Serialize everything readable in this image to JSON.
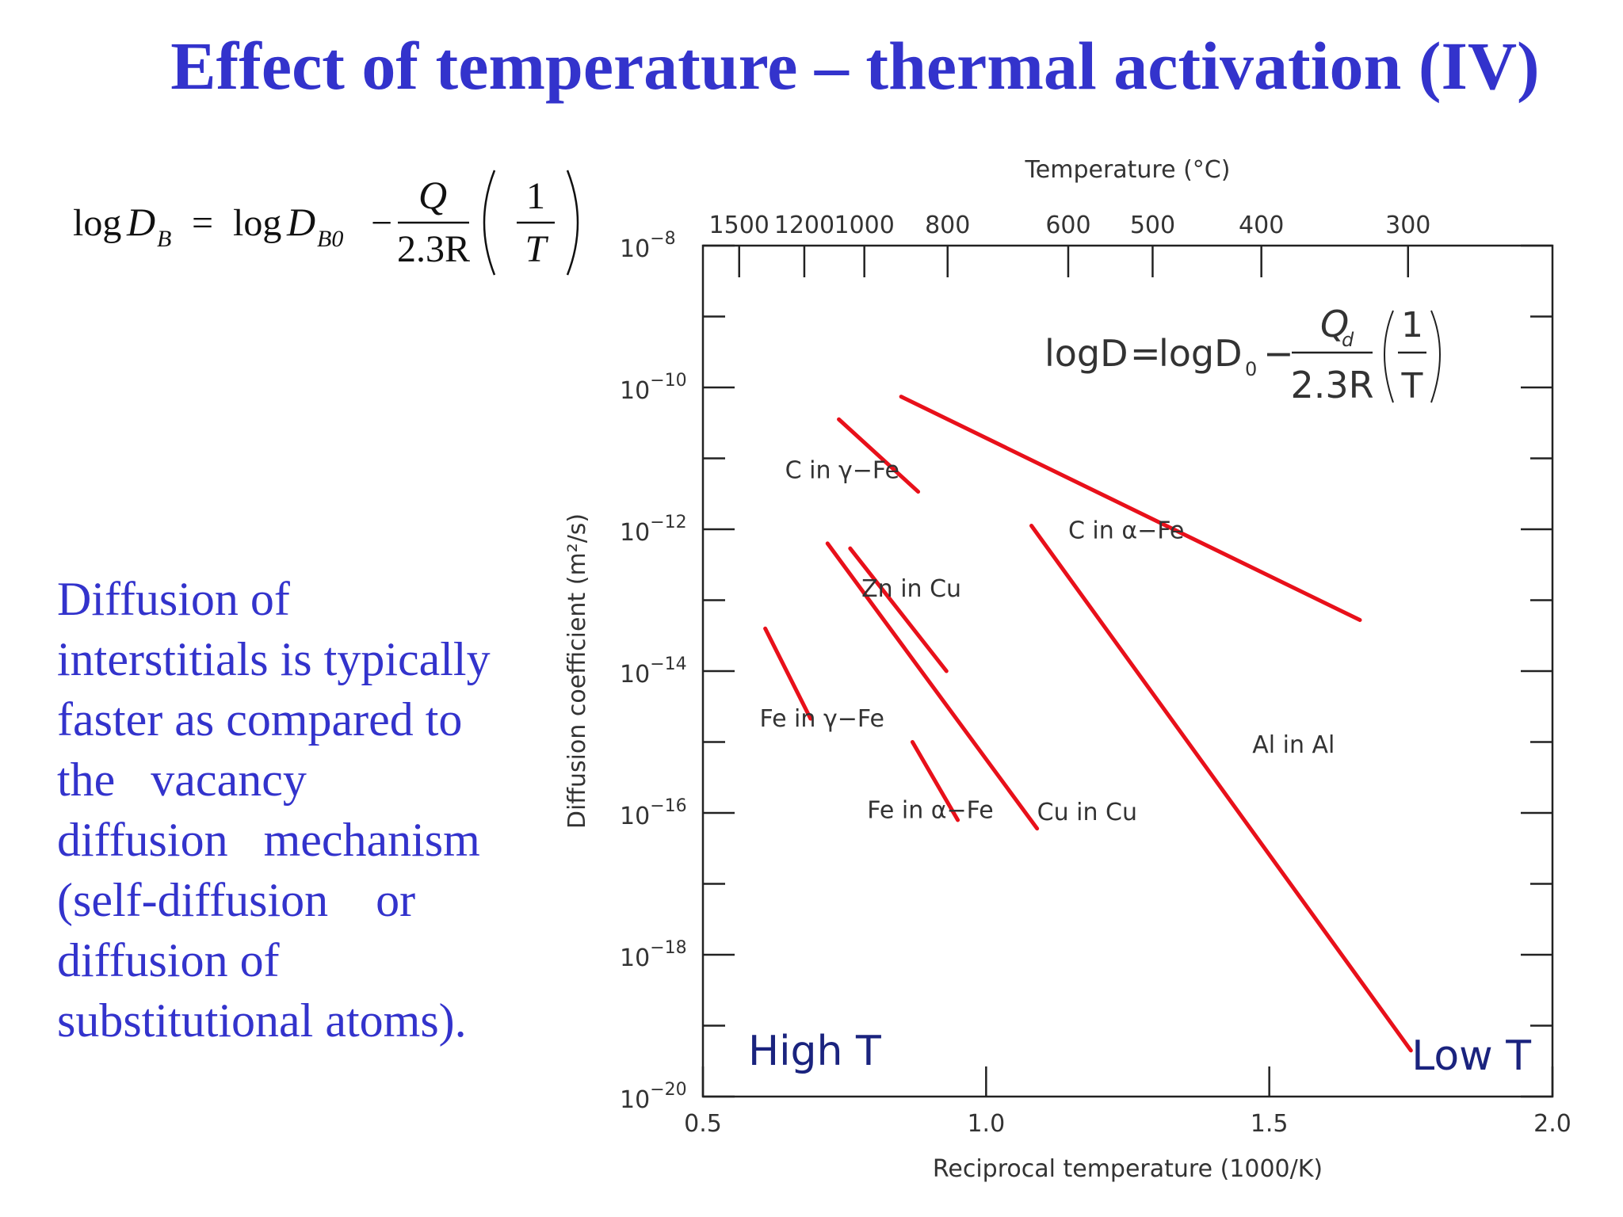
{
  "slide": {
    "title": "Effect of temperature – thermal activation (IV)",
    "body_lines": [
      "Diffusion of",
      "interstitials is typically",
      "faster as compared to",
      "the   vacancy",
      "diffusion   mechanism",
      "(self-diffusion    or",
      "diffusion of",
      "substitutional atoms)."
    ],
    "equation_left": {
      "log1": "log",
      "D1": "D",
      "sub1": "B",
      "eq": "=",
      "log2": "log",
      "D2": "D",
      "sub2": "B0",
      "minus": "−",
      "num": "Q",
      "den": "2.3R",
      "inner_num": "1",
      "inner_den": "T"
    },
    "text_color": "#3333cc"
  },
  "chart_data": {
    "type": "line",
    "title": "",
    "xlabel": "Reciprocal temperature (1000/K)",
    "ylabel": "Diffusion coefficient (m²/s)",
    "top_axis_label": "Temperature (°C)",
    "xlim": [
      0.5,
      2.0
    ],
    "y_scale": "log",
    "ylim": [
      1e-20,
      1e-08
    ],
    "x_ticks": [
      "0.5",
      "1.0",
      "1.5",
      "2.0"
    ],
    "y_ticks": [
      {
        "value": -8,
        "base": "10",
        "exp": "−8"
      },
      {
        "value": -10,
        "base": "10",
        "exp": "−10"
      },
      {
        "value": -12,
        "base": "10",
        "exp": "−12"
      },
      {
        "value": -14,
        "base": "10",
        "exp": "−14"
      },
      {
        "value": -16,
        "base": "10",
        "exp": "−16"
      },
      {
        "value": -18,
        "base": "10",
        "exp": "−18"
      },
      {
        "value": -20,
        "base": "10",
        "exp": "−20"
      }
    ],
    "top_ticks_celsius": [
      "1500",
      "1200",
      "1000",
      "800",
      "600",
      "500",
      "400",
      "300"
    ],
    "top_tick_recip": [
      0.564,
      0.679,
      0.785,
      0.932,
      1.145,
      1.294,
      1.486,
      1.745
    ],
    "line_color": "#e8101a",
    "grid": false,
    "inner_equation": {
      "lhs": "logD",
      "eq": "=",
      "log_part": "logD",
      "sub0": "0",
      "minus": "−",
      "num": "Q",
      "num_sub": "d",
      "den": "2.3R",
      "inner_num": "1",
      "inner_den": "T"
    },
    "annotations": {
      "high_t": "High T",
      "low_t": "Low T"
    },
    "series": [
      {
        "name": "C in α−Fe",
        "x": [
          0.85,
          1.66
        ],
        "log_y": [
          -10.13,
          -13.28
        ]
      },
      {
        "name": "C in γ−Fe",
        "x": [
          0.74,
          0.88
        ],
        "log_y": [
          -10.45,
          -11.47
        ]
      },
      {
        "name": "Zn in Cu",
        "x": [
          0.76,
          0.93
        ],
        "log_y": [
          -12.27,
          -14.0
        ]
      },
      {
        "name": "Cu in Cu",
        "x": [
          0.72,
          1.09
        ],
        "log_y": [
          -12.2,
          -16.22
        ]
      },
      {
        "name": "Fe in γ−Fe",
        "x": [
          0.61,
          0.69
        ],
        "log_y": [
          -13.4,
          -14.67
        ]
      },
      {
        "name": "Fe in α−Fe",
        "x": [
          0.87,
          0.95
        ],
        "log_y": [
          -15.0,
          -16.1
        ]
      },
      {
        "name": "Al in Al",
        "x": [
          1.08,
          1.75
        ],
        "log_y": [
          -11.95,
          -19.35
        ]
      }
    ]
  }
}
